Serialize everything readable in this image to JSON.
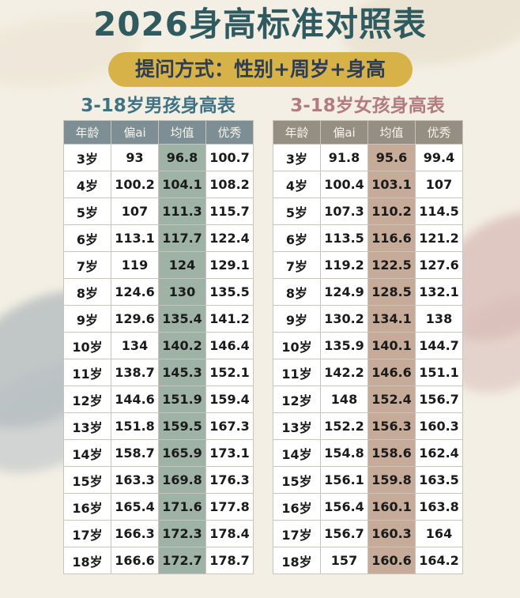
{
  "title": "2026身高标准对照表",
  "subtitle": "提问方式：性别+周岁+身高",
  "headers": [
    "年龄",
    "偏ai",
    "均值",
    "优秀"
  ],
  "boys": {
    "title": "3-18岁男孩身高表",
    "rows": [
      [
        "3岁",
        "93",
        "96.8",
        "100.7"
      ],
      [
        "4岁",
        "100.2",
        "104.1",
        "108.2"
      ],
      [
        "5岁",
        "107",
        "111.3",
        "115.7"
      ],
      [
        "6岁",
        "113.1",
        "117.7",
        "122.4"
      ],
      [
        "7岁",
        "119",
        "124",
        "129.1"
      ],
      [
        "8岁",
        "124.6",
        "130",
        "135.5"
      ],
      [
        "9岁",
        "129.6",
        "135.4",
        "141.2"
      ],
      [
        "10岁",
        "134",
        "140.2",
        "146.4"
      ],
      [
        "11岁",
        "138.7",
        "145.3",
        "152.1"
      ],
      [
        "12岁",
        "144.6",
        "151.9",
        "159.4"
      ],
      [
        "13岁",
        "151.8",
        "159.5",
        "167.3"
      ],
      [
        "14岁",
        "158.7",
        "165.9",
        "173.1"
      ],
      [
        "15岁",
        "163.3",
        "169.8",
        "176.3"
      ],
      [
        "16岁",
        "165.4",
        "171.6",
        "177.8"
      ],
      [
        "17岁",
        "166.3",
        "172.3",
        "178.4"
      ],
      [
        "18岁",
        "166.6",
        "172.7",
        "178.7"
      ]
    ]
  },
  "girls": {
    "title": "3-18岁女孩身高表",
    "rows": [
      [
        "3岁",
        "91.8",
        "95.6",
        "99.4"
      ],
      [
        "4岁",
        "100.4",
        "103.1",
        "107"
      ],
      [
        "5岁",
        "107.3",
        "110.2",
        "114.5"
      ],
      [
        "6岁",
        "113.5",
        "116.6",
        "121.2"
      ],
      [
        "7岁",
        "119.2",
        "122.5",
        "127.6"
      ],
      [
        "8岁",
        "124.9",
        "128.5",
        "132.1"
      ],
      [
        "9岁",
        "130.2",
        "134.1",
        "138"
      ],
      [
        "10岁",
        "135.9",
        "140.1",
        "144.7"
      ],
      [
        "11岁",
        "142.2",
        "146.6",
        "151.1"
      ],
      [
        "12岁",
        "148",
        "152.4",
        "156.7"
      ],
      [
        "13岁",
        "152.2",
        "156.3",
        "160.3"
      ],
      [
        "14岁",
        "154.8",
        "158.6",
        "162.4"
      ],
      [
        "15岁",
        "156.1",
        "159.8",
        "163.5"
      ],
      [
        "16岁",
        "156.4",
        "160.1",
        "163.8"
      ],
      [
        "17岁",
        "156.7",
        "160.3",
        "164"
      ],
      [
        "18岁",
        "157",
        "160.6",
        "164.2"
      ]
    ]
  },
  "colors": {
    "title": "#2f5b60",
    "subtitle_bg": "#d6b248",
    "boys_title": "#3f7384",
    "girls_title": "#b37a7f",
    "boys_header": "#7d8f95",
    "girls_header": "#958f83",
    "boys_avg": "#9eb3a5",
    "girls_avg": "#c6ab99"
  }
}
